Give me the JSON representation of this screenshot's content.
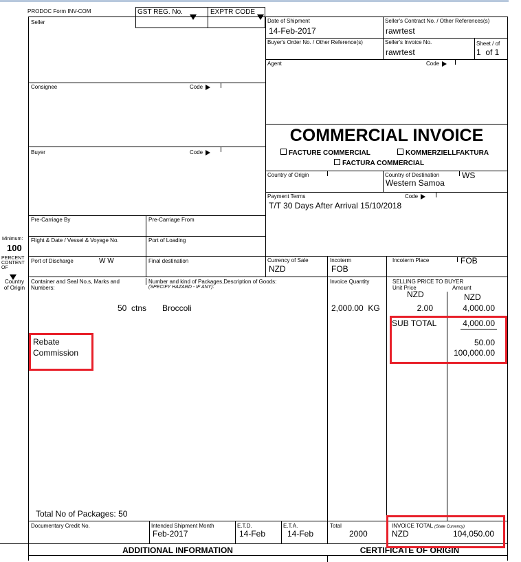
{
  "form_id": "PRODOC Form INV-COM",
  "gst_reg": "GST REG. No.",
  "exptr_code": "EXPTR CODE",
  "seller": "Seller",
  "consignee": "Consignee",
  "buyer": "Buyer",
  "code": "Code",
  "date_of_shipment": {
    "label": "Date of Shipment",
    "value": "14-Feb-2017"
  },
  "sellers_contract": {
    "label": "Seller's Contract No. / Other References(s)",
    "value": "rawrtest"
  },
  "buyers_order": {
    "label": "Buyer's Order No. / Other Reference(s)"
  },
  "sellers_invoice": {
    "label": "Seller's Invoice No.",
    "value": "rawrtest"
  },
  "sheet": {
    "label": "Sheet / of",
    "value": "1  of 1"
  },
  "agent": "Agent",
  "title": "COMMERCIAL INVOICE",
  "alt_titles": [
    "FACTURE COMMERCIAL",
    "KOMMERZIELLFAKTURA",
    "FACTURA COMMERCIAL"
  ],
  "country_of_origin": "Country of Origin",
  "country_of_destination": {
    "label": "Country of Destination",
    "code": "WS",
    "value": "Western Samoa"
  },
  "payment_terms": {
    "label": "Payment Terms",
    "value": "T/T 30 Days After Arrival 15/10/2018"
  },
  "pre_carriage_by": "Pre-Carriage By",
  "pre_carriage_from": "Pre-Carriage From",
  "flight": "Flight & Date / Vessel & Voyage No.",
  "port_of_loading": "Port of Loading",
  "port_of_discharge": {
    "label": "Port of Discharge",
    "value": "W        W"
  },
  "final_destination": "Final destination",
  "currency_of_sale": {
    "label": "Currency of Sale",
    "value": "NZD"
  },
  "incoterm": {
    "label": "Incoterm",
    "value": "FOB"
  },
  "incoterm_place": {
    "label": "Incoterm Place",
    "value": "FOB"
  },
  "side": {
    "minimum": "Minimum:",
    "percent": "100",
    "content": "PERCENT CONTENT OF",
    "country": "Country of Origin"
  },
  "goods": {
    "marks_label": "Container and Seal No.s, Marks and Numbers:",
    "desc_label": "Number and kind of Packages,Description of Goods:",
    "hazard": "(SPECIFY HAZARD - IF ANY):",
    "qty_label": "Invoice Quantity",
    "price_label": "SELLING PRICE TO BUYER",
    "unit_price_label": "Unit Price",
    "amount_label": "Amount",
    "unit_currency": "NZD",
    "amount_currency": "NZD",
    "line": {
      "packages": "50  ctns",
      "description": "Broccoli",
      "quantity": "2,000.00  KG",
      "unit_price": "2.00",
      "amount": "4,000.00"
    },
    "extra_labels": [
      "Rebate",
      "Commission"
    ],
    "subtotal_label": "SUB TOTAL",
    "subtotal": "4,000.00",
    "rebate": "50.00",
    "commission": "100,000.00",
    "total_packages": "Total No of Packages: 50"
  },
  "bottom": {
    "doc_credit": "Documentary Credit No.",
    "intended_month": {
      "label": "Intended Shipment Month",
      "value": "Feb-2017"
    },
    "etd": {
      "label": "E.T.D.",
      "value": "14-Feb"
    },
    "eta": {
      "label": "E.T.A.",
      "value": "14-Feb"
    },
    "total": {
      "label": "Total",
      "value": "2000"
    },
    "invoice_total": {
      "label": "INVOICE TOTAL",
      "note": "(State Currency)",
      "currency": "NZD",
      "value": "104,050.00"
    }
  },
  "additional_info": "ADDITIONAL INFORMATION",
  "certificate": "CERTIFICATE OF ORIGIN",
  "colors": {
    "highlight": "#e8202a",
    "top_bar": "#b7c8dd"
  }
}
